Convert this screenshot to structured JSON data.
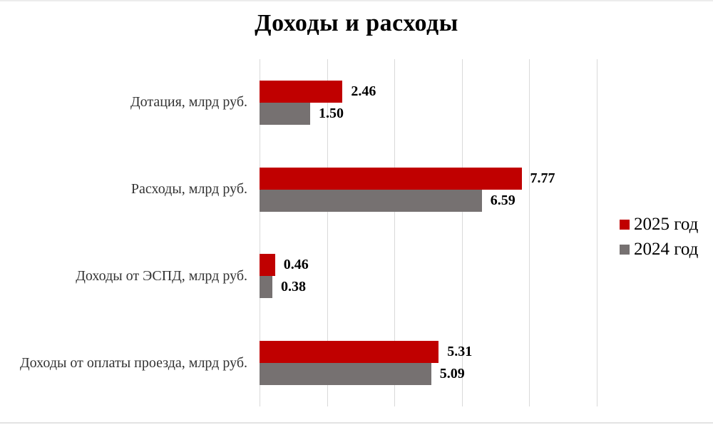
{
  "page": {
    "background": "#ffffff"
  },
  "chart_data": {
    "type": "bar",
    "orientation": "horizontal",
    "title": "Доходы и расходы",
    "categories": [
      "Дотация, млрд руб.",
      "Расходы, млрд руб.",
      "Доходы от ЭСПД, млрд руб.",
      "Доходы от оплаты проезда, млрд руб."
    ],
    "series": [
      {
        "name": "2025 год",
        "color": "#c00000",
        "values": [
          2.46,
          7.77,
          0.46,
          5.31
        ],
        "labels": [
          "2.46",
          "7.77",
          "0.46",
          "5.31"
        ]
      },
      {
        "name": "2024 год",
        "color": "#767171",
        "values": [
          1.5,
          6.59,
          0.38,
          5.09
        ],
        "labels": [
          "1.50",
          "6.59",
          "0.38",
          "5.09"
        ]
      }
    ],
    "xlabel": "",
    "ylabel": "",
    "xlim": [
      0,
      10
    ],
    "gridline_step": 2,
    "grid": "vertical-only",
    "gridline_color": "#d9d9d9",
    "value_labels": "outside-end",
    "legend_position": "right"
  }
}
